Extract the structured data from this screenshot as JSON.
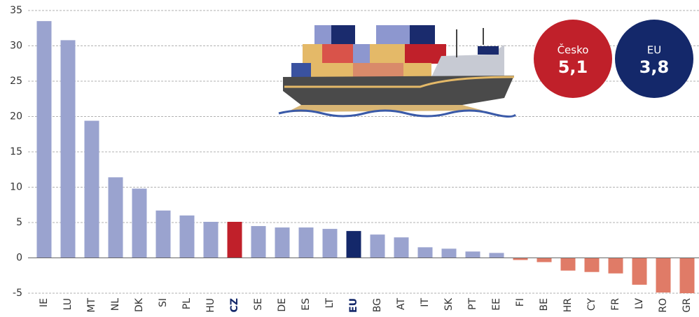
{
  "chart_data": {
    "type": "bar",
    "categories": [
      "IE",
      "LU",
      "MT",
      "NL",
      "DK",
      "SI",
      "PL",
      "HU",
      "CZ",
      "SE",
      "DE",
      "ES",
      "LT",
      "EU",
      "BG",
      "AT",
      "IT",
      "SK",
      "PT",
      "EE",
      "FI",
      "BE",
      "HR",
      "CY",
      "FR",
      "LV",
      "RO",
      "GR"
    ],
    "values": [
      33.5,
      30.8,
      19.4,
      11.4,
      9.8,
      6.7,
      6.0,
      5.1,
      5.1,
      4.5,
      4.3,
      4.3,
      4.1,
      3.8,
      3.3,
      2.9,
      1.5,
      1.3,
      0.9,
      0.7,
      -0.3,
      -0.6,
      -1.8,
      -2.0,
      -2.2,
      -3.8,
      -4.9,
      -5.0
    ],
    "colors": [
      "#9aa3cf",
      "#9aa3cf",
      "#9aa3cf",
      "#9aa3cf",
      "#9aa3cf",
      "#9aa3cf",
      "#9aa3cf",
      "#9aa3cf",
      "#c0202a",
      "#9aa3cf",
      "#9aa3cf",
      "#9aa3cf",
      "#9aa3cf",
      "#14286a",
      "#9aa3cf",
      "#9aa3cf",
      "#9aa3cf",
      "#9aa3cf",
      "#9aa3cf",
      "#9aa3cf",
      "#e07b67",
      "#e07b67",
      "#e07b67",
      "#e07b67",
      "#e07b67",
      "#e07b67",
      "#e07b67",
      "#e07b67"
    ],
    "emphasized": [
      8,
      13
    ],
    "ylim": [
      -5,
      35
    ],
    "yticks": [
      -5,
      0,
      5,
      10,
      15,
      20,
      25,
      30,
      35
    ],
    "grid": true,
    "annotations": [
      {
        "label": "Česko",
        "value": 5.1,
        "value_label": "5,1",
        "color": "#c0202a"
      },
      {
        "label": "EU",
        "value": 3.8,
        "value_label": "3,8",
        "color": "#14286a"
      }
    ]
  }
}
